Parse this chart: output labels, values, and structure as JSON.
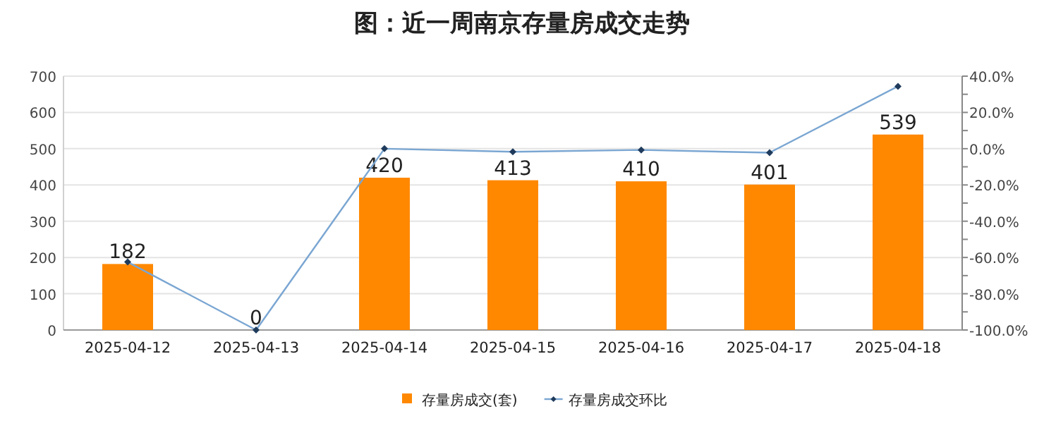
{
  "chart_data": {
    "type": "bar",
    "title": "图：近一周南京存量房成交走势",
    "categories": [
      "2025-04-12",
      "2025-04-13",
      "2025-04-14",
      "2025-04-15",
      "2025-04-16",
      "2025-04-17",
      "2025-04-18"
    ],
    "series": [
      {
        "name": "存量房成交(套)",
        "color": "#ff8800",
        "values": [
          182,
          0,
          420,
          413,
          410,
          401,
          539
        ],
        "data_labels": true
      },
      {
        "name": "存量房成交环比",
        "type": "line",
        "axis": "y2",
        "color": "#7aa6d2",
        "marker": "diamond",
        "values": [
          -62.5,
          -100,
          0,
          -1.7,
          -0.7,
          -2.2,
          34.4
        ]
      }
    ],
    "ylim": [
      0,
      700
    ],
    "yticks": [
      0,
      100,
      200,
      300,
      400,
      500,
      600,
      700
    ],
    "y2lim": [
      -100,
      40
    ],
    "y2ticks": [
      {
        "value": -100,
        "label": "-100.0%"
      },
      {
        "value": -90,
        "label": null
      },
      {
        "value": -80,
        "label": "-80.0%"
      },
      {
        "value": -70,
        "label": null
      },
      {
        "value": -60,
        "label": "-60.0%"
      },
      {
        "value": -50,
        "label": null
      },
      {
        "value": -40,
        "label": "-40.0%"
      },
      {
        "value": -30,
        "label": null
      },
      {
        "value": -20,
        "label": "-20.0%"
      },
      {
        "value": -10,
        "label": null
      },
      {
        "value": 0,
        "label": "0.0%"
      },
      {
        "value": 10,
        "label": null
      },
      {
        "value": 20,
        "label": "20.0%"
      },
      {
        "value": 30,
        "label": null
      },
      {
        "value": 40,
        "label": "40.0%"
      }
    ],
    "grid": "y",
    "legend": "bottom"
  }
}
